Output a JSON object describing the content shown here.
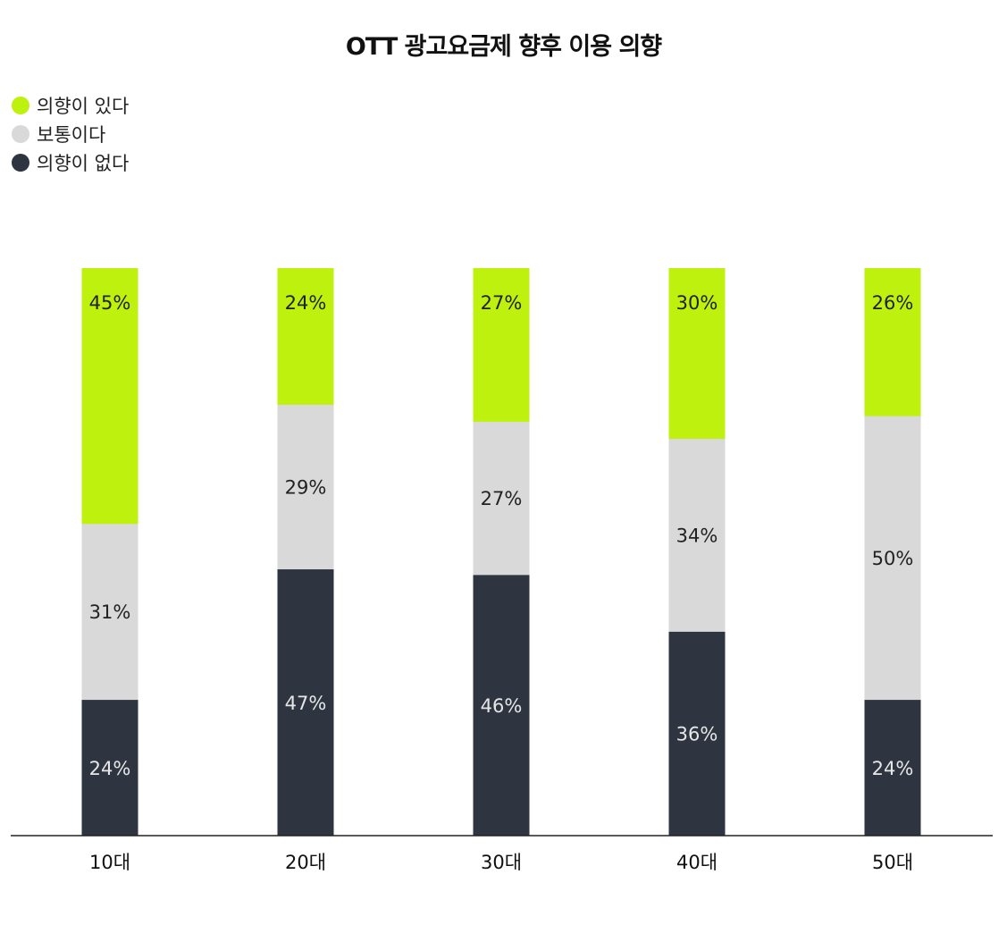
{
  "chart_data": {
    "type": "bar",
    "stacked": true,
    "title": "OTT 광고요금제 향후 이용 의향",
    "categories": [
      "10대",
      "20대",
      "30대",
      "40대",
      "50대"
    ],
    "series": [
      {
        "name": "의향이 있다",
        "values": [
          45,
          24,
          27,
          30,
          26
        ],
        "labels": [
          "45%",
          "24%",
          "27%",
          "30%",
          "26%"
        ],
        "color": "#bef20e",
        "text_color": "#222222"
      },
      {
        "name": "보통이다",
        "values": [
          31,
          29,
          27,
          34,
          50
        ],
        "labels": [
          "31%",
          "29%",
          "27%",
          "34%",
          "50%"
        ],
        "color": "#d9d9d9",
        "text_color": "#222222"
      },
      {
        "name": "의향이 없다",
        "values": [
          24,
          47,
          46,
          36,
          24
        ],
        "labels": [
          "24%",
          "47%",
          "46%",
          "36%",
          "24%"
        ],
        "color": "#2e3541",
        "text_color": "#e6e6e6"
      }
    ],
    "legend_position": "top-left",
    "ylim": [
      0,
      100
    ],
    "grid": false
  }
}
